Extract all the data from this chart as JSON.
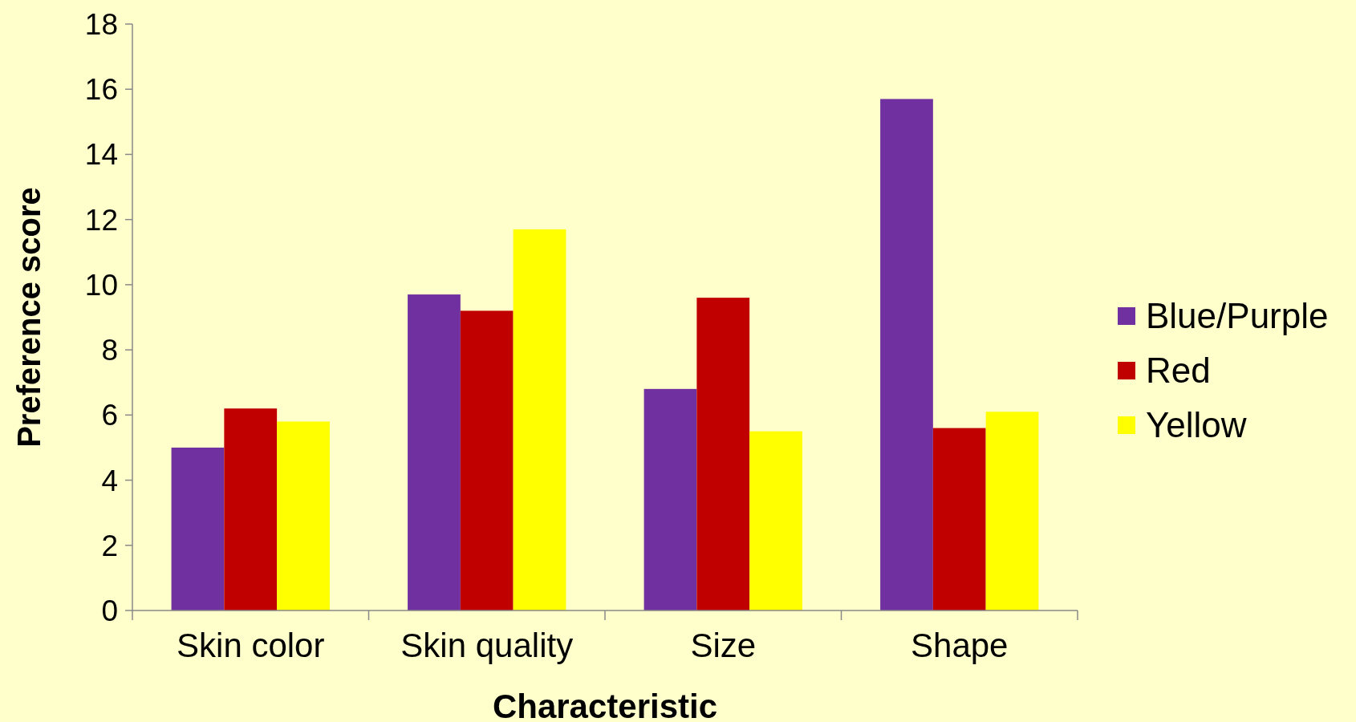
{
  "chart_data": {
    "type": "bar",
    "xlabel": "Characteristic",
    "ylabel": "Preference score",
    "categories": [
      "Skin color",
      "Skin quality",
      "Size",
      "Shape"
    ],
    "series": [
      {
        "name": "Blue/Purple",
        "color": "#7030a0",
        "values": [
          5.0,
          9.7,
          6.8,
          15.7
        ]
      },
      {
        "name": "Red",
        "color": "#c00000",
        "values": [
          6.2,
          9.2,
          9.6,
          5.6
        ]
      },
      {
        "name": "Yellow",
        "color": "#ffff00",
        "values": [
          5.8,
          11.7,
          5.5,
          6.1
        ]
      }
    ],
    "ylim": [
      0,
      18
    ],
    "yticks": [
      0,
      2,
      4,
      6,
      8,
      10,
      12,
      14,
      16,
      18
    ],
    "grid": false,
    "legend": "right"
  }
}
